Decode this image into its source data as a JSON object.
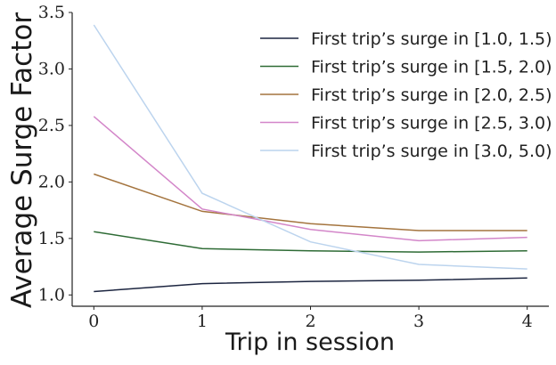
{
  "chart_data": {
    "type": "line",
    "title": "",
    "xlabel": "Trip in session",
    "ylabel": "Average Surge Factor",
    "x": [
      0,
      1,
      2,
      3,
      4
    ],
    "xlim": [
      -0.2,
      4.2
    ],
    "ylim": [
      0.9,
      3.5
    ],
    "xticks": [
      "0",
      "1",
      "2",
      "3",
      "4"
    ],
    "yticks": [
      "1.0",
      "1.5",
      "2.0",
      "2.5",
      "3.0",
      "3.5"
    ],
    "grid": false,
    "legend": "top-right",
    "series": [
      {
        "name": "First trip’s surge in [1.0, 1.5)",
        "color": "#1c2540",
        "values": [
          1.03,
          1.1,
          1.12,
          1.13,
          1.15
        ]
      },
      {
        "name": "First trip’s surge in [1.5, 2.0)",
        "color": "#2e6b35",
        "values": [
          1.56,
          1.41,
          1.39,
          1.38,
          1.39
        ]
      },
      {
        "name": "First trip’s surge in [2.0, 2.5)",
        "color": "#a4743e",
        "values": [
          2.07,
          1.74,
          1.63,
          1.57,
          1.57
        ]
      },
      {
        "name": "First trip’s surge in [2.5, 3.0)",
        "color": "#d386c9",
        "values": [
          2.58,
          1.76,
          1.58,
          1.48,
          1.51
        ]
      },
      {
        "name": "First trip’s surge in [3.0, 5.0)",
        "color": "#bcd4ee",
        "values": [
          3.39,
          1.9,
          1.47,
          1.27,
          1.23
        ]
      }
    ]
  }
}
